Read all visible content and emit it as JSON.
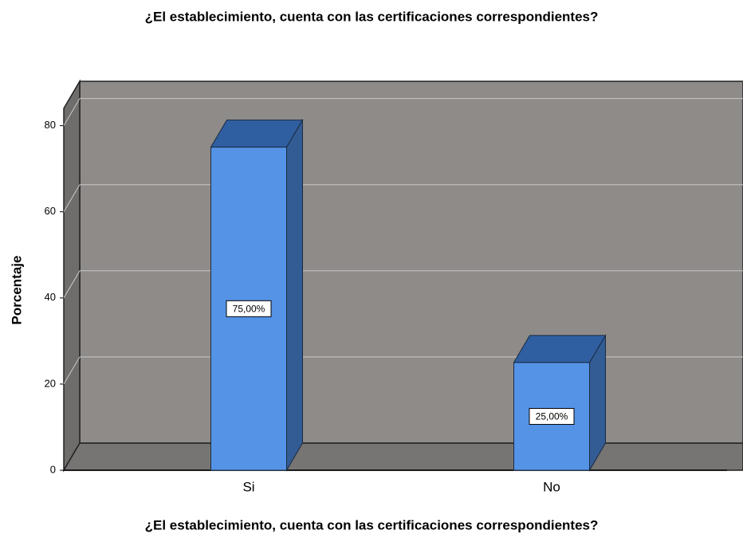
{
  "chart_data": {
    "type": "bar3d",
    "title": "¿El establecimiento, cuenta con las certificaciones correspondientes?",
    "x_label": "¿El establecimiento, cuenta con las certificaciones correspondientes?",
    "y_label": "Porcentaje",
    "categories": [
      "Si",
      "No"
    ],
    "values": [
      75,
      25
    ],
    "value_labels": [
      "75,00%",
      "25,00%"
    ],
    "color": "#5593e6",
    "ylim": [
      0,
      84
    ],
    "yticks": [
      0,
      20,
      40,
      60,
      80
    ],
    "grid": true
  }
}
